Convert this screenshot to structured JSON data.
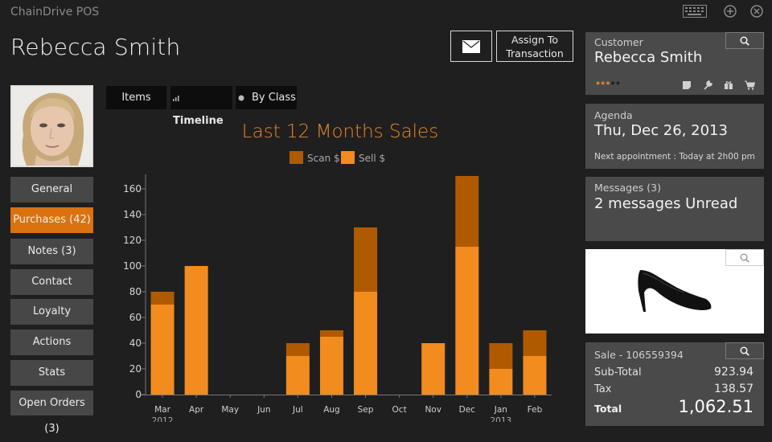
{
  "app": {
    "title": "ChainDrive POS"
  },
  "system_icons": [
    "keyboard-icon",
    "add-icon",
    "close-icon"
  ],
  "customer": {
    "name": "Rebecca Smith"
  },
  "header": {
    "assign_line1": "Assign To",
    "assign_line2": "Transaction"
  },
  "nav": {
    "items": [
      {
        "label": "General"
      },
      {
        "label": "Purchases (42)"
      },
      {
        "label": "Notes (3)"
      },
      {
        "label": "Contact"
      },
      {
        "label": "Loyalty"
      },
      {
        "label": "Actions"
      },
      {
        "label": "Stats"
      },
      {
        "label": "Open Orders (3)"
      }
    ],
    "active_index": 1
  },
  "tabs": [
    {
      "label": "Items"
    },
    {
      "label": "Timeline"
    },
    {
      "label": "By Class"
    }
  ],
  "colors": {
    "accent": "#d9720f",
    "scan": "#b05a00",
    "sell": "#f28c1e"
  },
  "chart_data": {
    "type": "bar",
    "stacked": true,
    "title": "Last 12 Months Sales",
    "categories": [
      "Mar",
      "Apr",
      "May",
      "Jun",
      "Jul",
      "Aug",
      "Sep",
      "Oct",
      "Nov",
      "Dec",
      "Jan",
      "Feb"
    ],
    "year_labels": [
      {
        "category": "Mar",
        "year": "2012"
      },
      {
        "category": "Jan",
        "year": "2013"
      }
    ],
    "series": [
      {
        "name": "Sell $",
        "color": "#f28c1e",
        "values": [
          70,
          100,
          0,
          0,
          30,
          45,
          80,
          0,
          40,
          115,
          20,
          30
        ]
      },
      {
        "name": "Scan $",
        "color": "#b05a00",
        "values": [
          10,
          0,
          0,
          0,
          10,
          5,
          50,
          0,
          0,
          55,
          20,
          20
        ]
      }
    ],
    "legend": [
      "Scan $",
      "Sell $"
    ],
    "legend_position": "top",
    "ylim": [
      0,
      170
    ],
    "yticks": [
      0,
      20,
      40,
      60,
      80,
      100,
      120,
      140,
      160
    ]
  },
  "customer_card": {
    "label": "Customer",
    "name": "Rebecca Smith",
    "rating": 3,
    "max_rating": 5,
    "stars": "★★★★★"
  },
  "agenda": {
    "label": "Agenda",
    "date": "Thu, Dec 26, 2013",
    "next": "Next appointment : Today at 2h00 pm"
  },
  "messages": {
    "label": "Messages (3)",
    "text": "2 messages Unread"
  },
  "sale": {
    "label": "Sale - 106559394",
    "subtotal_label": "Sub-Total",
    "subtotal": "923.94",
    "tax_label": "Tax",
    "tax": "138.57",
    "total_label": "Total",
    "total": "1,062.51"
  }
}
